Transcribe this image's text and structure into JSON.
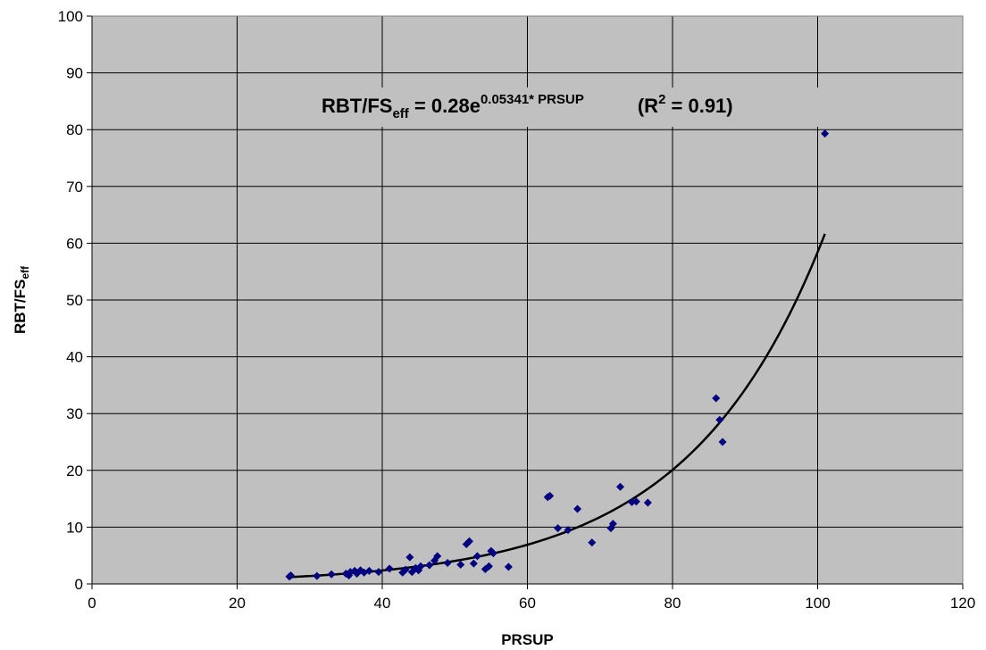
{
  "chart_data": {
    "type": "scatter",
    "xlabel": "PRSUP",
    "ylabel_main": "RBT/FS",
    "ylabel_sub": "eff",
    "xlim": [
      0,
      120
    ],
    "ylim": [
      0,
      100
    ],
    "xticks": [
      0,
      20,
      40,
      60,
      80,
      100,
      120
    ],
    "yticks": [
      0,
      10,
      20,
      30,
      40,
      50,
      60,
      70,
      80,
      90,
      100
    ],
    "grid": true,
    "plot_background": "#c0c0c0",
    "marker_color": "#000080",
    "trendline_color": "#000000",
    "equation": {
      "lhs": "RBT/FS",
      "lhs_sub": "eff",
      "eq": " = 0.28e",
      "exponent": "0.05341* PRSUP",
      "r2_open": "(R",
      "r2_sup": "2",
      "r2_close": " = 0.91)"
    },
    "trendline": {
      "type": "exponential",
      "a": 0.28,
      "b": 0.05341,
      "x_start": 27.2,
      "x_end": 101
    },
    "points": [
      {
        "x": 27.2,
        "y": 1.3
      },
      {
        "x": 27.4,
        "y": 1.5
      },
      {
        "x": 31.0,
        "y": 1.4
      },
      {
        "x": 33.0,
        "y": 1.7
      },
      {
        "x": 35.0,
        "y": 1.8
      },
      {
        "x": 35.4,
        "y": 1.5
      },
      {
        "x": 35.6,
        "y": 2.1
      },
      {
        "x": 36.2,
        "y": 2.3
      },
      {
        "x": 36.5,
        "y": 1.8
      },
      {
        "x": 37.0,
        "y": 2.4
      },
      {
        "x": 37.5,
        "y": 2.0
      },
      {
        "x": 38.2,
        "y": 2.3
      },
      {
        "x": 39.5,
        "y": 2.1
      },
      {
        "x": 41.0,
        "y": 2.7
      },
      {
        "x": 42.8,
        "y": 2.0
      },
      {
        "x": 43.2,
        "y": 2.5
      },
      {
        "x": 43.8,
        "y": 4.7
      },
      {
        "x": 44.1,
        "y": 2.1
      },
      {
        "x": 44.6,
        "y": 2.8
      },
      {
        "x": 45.0,
        "y": 2.4
      },
      {
        "x": 45.3,
        "y": 3.1
      },
      {
        "x": 46.5,
        "y": 3.3
      },
      {
        "x": 47.2,
        "y": 4.1
      },
      {
        "x": 47.6,
        "y": 4.9
      },
      {
        "x": 49.0,
        "y": 3.7
      },
      {
        "x": 50.8,
        "y": 3.4
      },
      {
        "x": 51.6,
        "y": 7.0
      },
      {
        "x": 52.0,
        "y": 7.5
      },
      {
        "x": 52.6,
        "y": 3.6
      },
      {
        "x": 53.1,
        "y": 4.9
      },
      {
        "x": 54.2,
        "y": 2.6
      },
      {
        "x": 54.7,
        "y": 3.1
      },
      {
        "x": 55.0,
        "y": 5.8
      },
      {
        "x": 55.3,
        "y": 5.4
      },
      {
        "x": 57.4,
        "y": 3.0
      },
      {
        "x": 62.8,
        "y": 15.3
      },
      {
        "x": 63.1,
        "y": 15.5
      },
      {
        "x": 64.2,
        "y": 9.8
      },
      {
        "x": 65.6,
        "y": 9.5
      },
      {
        "x": 66.9,
        "y": 13.2
      },
      {
        "x": 68.9,
        "y": 7.3
      },
      {
        "x": 71.5,
        "y": 9.8
      },
      {
        "x": 71.8,
        "y": 10.6
      },
      {
        "x": 72.8,
        "y": 17.1
      },
      {
        "x": 74.4,
        "y": 14.4
      },
      {
        "x": 75.0,
        "y": 14.5
      },
      {
        "x": 76.6,
        "y": 14.3
      },
      {
        "x": 86.0,
        "y": 32.7
      },
      {
        "x": 86.5,
        "y": 28.9
      },
      {
        "x": 86.9,
        "y": 25.0
      },
      {
        "x": 101.0,
        "y": 79.3
      }
    ]
  }
}
